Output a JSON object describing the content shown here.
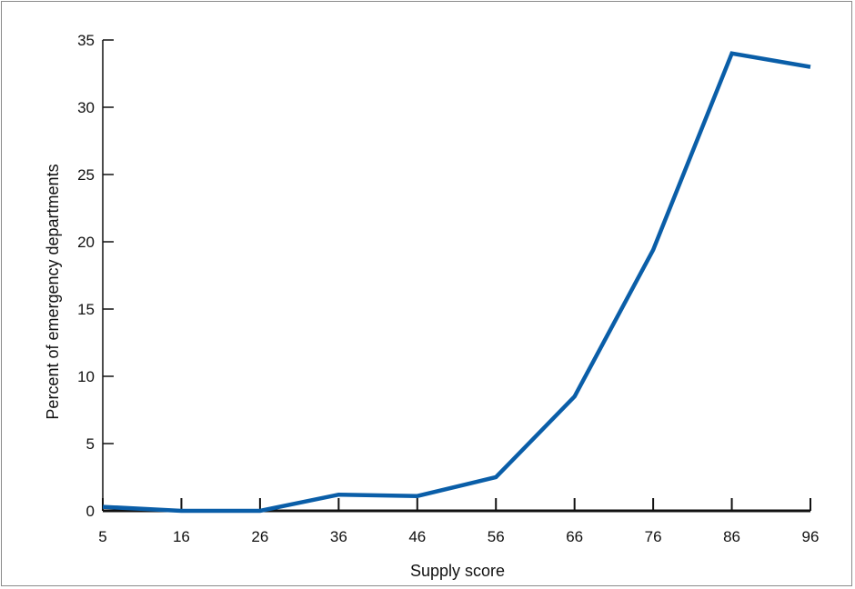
{
  "chart_data": {
    "type": "line",
    "title": "",
    "xlabel": "Supply score",
    "ylabel": "Percent of emergency departments",
    "x": [
      5,
      16,
      26,
      36,
      46,
      56,
      66,
      76,
      86,
      96
    ],
    "x_tick_labels": [
      "5",
      "16",
      "26",
      "36",
      "46",
      "56",
      "66",
      "76",
      "86",
      "96"
    ],
    "y_ticks": [
      0,
      5,
      10,
      15,
      20,
      25,
      30,
      35
    ],
    "y_tick_labels": [
      "0",
      "5",
      "10",
      "15",
      "20",
      "25",
      "30",
      "35"
    ],
    "ylim": [
      0,
      35
    ],
    "grid": false,
    "series": [
      {
        "color": "#0a5ea8",
        "values": [
          0.3,
          0.0,
          0.0,
          1.2,
          1.1,
          2.5,
          8.5,
          19.4,
          34.0,
          33.0
        ]
      }
    ]
  }
}
